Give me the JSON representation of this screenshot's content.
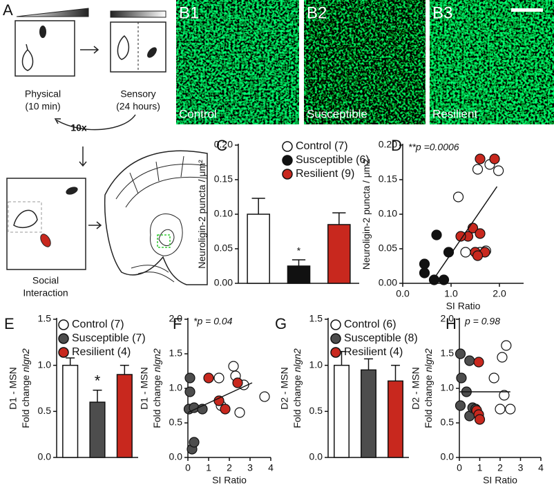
{
  "panel_a": {
    "letter": "A",
    "physical": "Physical",
    "physical_time": "(10 min)",
    "sensory": "Sensory",
    "sensory_time": "(24 hours)",
    "repeat": "10x",
    "social": "Social",
    "social_line2": "Interaction"
  },
  "panel_b": {
    "images": [
      {
        "panel": "B1",
        "label": "Control"
      },
      {
        "panel": "B2",
        "label": "Susceptible"
      },
      {
        "panel": "B3",
        "label": "Resilient"
      }
    ]
  },
  "chart_data": [
    {
      "type": "bar",
      "panel": "C",
      "ylabel": "Neuroligin-2 puncta / μm²",
      "categories": [
        "Control (7)",
        "Susceptible (6)",
        "Resilient (9)"
      ],
      "values": [
        0.1,
        0.025,
        0.085
      ],
      "errors": [
        0.023,
        0.009,
        0.017
      ],
      "colors": [
        "#ffffff",
        "#111111",
        "#c8281e"
      ],
      "annotation": "*",
      "ylim": [
        0,
        0.2
      ],
      "yticks": [
        {
          "value": 0,
          "label": "0.00"
        },
        {
          "value": 0.05,
          "label": "0.05"
        },
        {
          "value": 0.1,
          "label": "0.10"
        },
        {
          "value": 0.15,
          "label": "0.15"
        },
        {
          "value": 0.2,
          "label": "0.20"
        }
      ]
    },
    {
      "type": "scatter",
      "panel": "D",
      "ylabel": "Neuroligin-2 puncta / μm2",
      "xlabel": "SI Ratio",
      "annotation": "**p =0.0006",
      "series": [
        {
          "color": "#ffffff",
          "x": [
            1.55,
            1.8,
            1.98,
            1.15,
            1.3,
            1.6,
            1.72
          ],
          "y": [
            0.165,
            0.172,
            0.163,
            0.125,
            0.045,
            0.045,
            0.047
          ]
        },
        {
          "color": "#111111",
          "x": [
            0.45,
            0.45,
            0.7,
            0.65,
            0.85,
            0.95
          ],
          "y": [
            0.028,
            0.015,
            0.07,
            0.005,
            0.005,
            0.045
          ]
        },
        {
          "color": "#c8281e",
          "x": [
            1.6,
            1.9,
            1.35,
            1.45,
            1.6,
            1.5,
            1.7,
            1.2,
            1.55
          ],
          "y": [
            0.18,
            0.18,
            0.068,
            0.08,
            0.072,
            0.045,
            0.045,
            0.068,
            0.04
          ]
        }
      ],
      "fit": {
        "x": [
          0.58,
          1.95
        ],
        "y": [
          0,
          0.14
        ]
      },
      "xlim": [
        0,
        2.5
      ],
      "ylim": [
        0,
        0.2
      ],
      "xticks": [
        {
          "value": 0,
          "label": "0.0"
        },
        {
          "value": 1,
          "label": "1.0"
        },
        {
          "value": 2,
          "label": "2.0"
        }
      ],
      "yticks": [
        {
          "value": 0,
          "label": "0.00"
        },
        {
          "value": 0.05,
          "label": "0.05"
        },
        {
          "value": 0.1,
          "label": "0.10"
        },
        {
          "value": 0.15,
          "label": "0.15"
        },
        {
          "value": 0.2,
          "label": "0.20"
        }
      ]
    },
    {
      "type": "bar",
      "panel": "E",
      "ylabel_top": "D1 - MSN",
      "ylabel": "Fold change",
      "ylabel_italic": "nlgn2",
      "categories": [
        "Control (7)",
        "Susceptible (7)",
        "Resilient (4)"
      ],
      "values": [
        1.0,
        0.6,
        0.9
      ],
      "errors": [
        0.08,
        0.13,
        0.1
      ],
      "colors": [
        "#ffffff",
        "#4d4d4d",
        "#c8281e"
      ],
      "annotation": "*",
      "ylim": [
        0,
        1.5
      ],
      "yticks": [
        {
          "value": 0,
          "label": "0.0"
        },
        {
          "value": 0.5,
          "label": "0.5"
        },
        {
          "value": 1,
          "label": "1.0"
        },
        {
          "value": 1.5,
          "label": "1.5"
        }
      ]
    },
    {
      "type": "scatter",
      "panel": "F",
      "ylabel_top": "D1 - MSN",
      "ylabel": "Fold change",
      "ylabel_italic": "nlgn2",
      "xlabel": "SI Ratio",
      "annotation": "*p = 0.04",
      "series": [
        {
          "color": "#ffffff",
          "x": [
            2.2,
            2.3,
            2.7,
            1.5,
            1.6,
            2.5,
            3.7
          ],
          "y": [
            1.32,
            1.18,
            1.05,
            1.15,
            0.75,
            0.65,
            0.88
          ]
        },
        {
          "color": "#4d4d4d",
          "x": [
            0.1,
            0.1,
            0.05,
            0.3,
            0.2,
            0.3,
            0.7
          ],
          "y": [
            1.15,
            0.95,
            0.7,
            0.72,
            0.12,
            0.22,
            0.7
          ]
        },
        {
          "color": "#c8281e",
          "x": [
            1.0,
            2.4,
            1.8,
            1.5
          ],
          "y": [
            1.15,
            1.08,
            0.7,
            0.82
          ]
        }
      ],
      "fit": {
        "x": [
          0,
          3.1
        ],
        "y": [
          0.65,
          1.08
        ]
      },
      "xlim": [
        0,
        4
      ],
      "ylim": [
        0,
        2
      ],
      "xticks": [
        0,
        1,
        2,
        3,
        4
      ],
      "yticks": [
        {
          "value": 0,
          "label": "0.0"
        },
        {
          "value": 0.5,
          "label": "0.5"
        },
        {
          "value": 1,
          "label": "1.0"
        },
        {
          "value": 1.5,
          "label": "1.5"
        },
        {
          "value": 2,
          "label": "2.0"
        }
      ]
    },
    {
      "type": "bar",
      "panel": "G",
      "ylabel_top": "D2 - MSN",
      "ylabel": "Fold change",
      "ylabel_italic": "nlgn2",
      "categories": [
        "Control (6)",
        "Susceptible (8)",
        "Resilient (4)"
      ],
      "values": [
        1.0,
        0.95,
        0.83
      ],
      "errors": [
        0.15,
        0.12,
        0.17
      ],
      "colors": [
        "#ffffff",
        "#4d4d4d",
        "#c8281e"
      ],
      "ylim": [
        0,
        1.5
      ],
      "yticks": [
        {
          "value": 0,
          "label": "0.0"
        },
        {
          "value": 0.5,
          "label": "0.5"
        },
        {
          "value": 1,
          "label": "1.0"
        },
        {
          "value": 1.5,
          "label": "1.5"
        }
      ]
    },
    {
      "type": "scatter",
      "panel": "H",
      "ylabel_top": "D2 - MSN",
      "ylabel": "Fold change",
      "ylabel_italic": "nlgn2",
      "xlabel": "SI Ratio",
      "annotation": "p = 0.98",
      "series": [
        {
          "color": "#ffffff",
          "x": [
            2.3,
            2.1,
            1.7,
            2.2,
            2.0,
            2.5
          ],
          "y": [
            1.62,
            1.45,
            1.15,
            0.9,
            0.7,
            0.7
          ]
        },
        {
          "color": "#4d4d4d",
          "x": [
            0.05,
            0.1,
            0.05,
            0.5,
            0.5,
            0.65,
            0.8,
            0.35
          ],
          "y": [
            1.5,
            1.15,
            0.75,
            1.4,
            0.6,
            0.72,
            0.7,
            0.95
          ]
        },
        {
          "color": "#c8281e",
          "x": [
            0.95,
            0.85,
            0.95,
            1.0
          ],
          "y": [
            1.38,
            0.68,
            0.62,
            0.55
          ]
        }
      ],
      "fit": {
        "x": [
          0,
          2.5
        ],
        "y": [
          0.95,
          0.95
        ]
      },
      "xlim": [
        0,
        4
      ],
      "ylim": [
        0,
        2
      ],
      "xticks": [
        0,
        1,
        2,
        3,
        4
      ],
      "yticks": [
        {
          "value": 0,
          "label": "0.0"
        },
        {
          "value": 0.5,
          "label": "0.5"
        },
        {
          "value": 1,
          "label": "1.0"
        },
        {
          "value": 1.5,
          "label": "1.5"
        },
        {
          "value": 2,
          "label": "2.0"
        }
      ]
    }
  ]
}
